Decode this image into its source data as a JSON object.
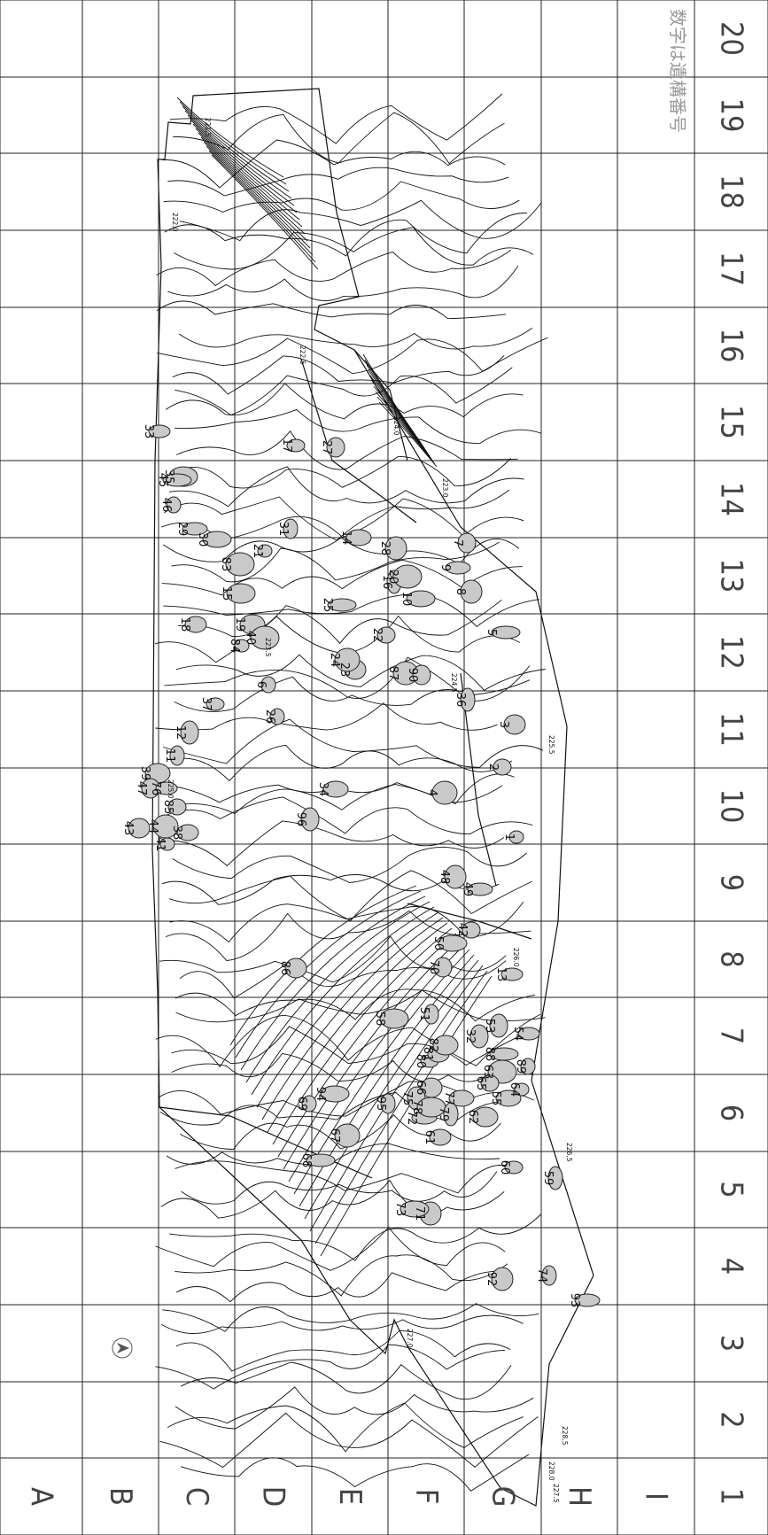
{
  "map": {
    "note": "数字は遺構番号",
    "row_labels": [
      "A",
      "B",
      "C",
      "D",
      "E",
      "F",
      "G",
      "H",
      "I"
    ],
    "col_labels": [
      "1",
      "2",
      "3",
      "4",
      "5",
      "6",
      "7",
      "8",
      "9",
      "10",
      "11",
      "12",
      "13",
      "14",
      "15",
      "16",
      "17",
      "18",
      "19",
      "20"
    ],
    "elevation_labels": [
      "221.5",
      "222.0",
      "222.5",
      "223.0",
      "223.5",
      "224.0",
      "224.5",
      "225.0",
      "225.5",
      "226.0",
      "226.5",
      "227.0",
      "227.5",
      "228.0",
      "228.5"
    ],
    "features": [
      {
        "id": "1"
      },
      {
        "id": "2"
      },
      {
        "id": "3"
      },
      {
        "id": "4"
      },
      {
        "id": "5"
      },
      {
        "id": "6"
      },
      {
        "id": "7"
      },
      {
        "id": "8"
      },
      {
        "id": "9"
      },
      {
        "id": "10"
      },
      {
        "id": "11"
      },
      {
        "id": "12"
      },
      {
        "id": "13"
      },
      {
        "id": "14"
      },
      {
        "id": "15"
      },
      {
        "id": "16"
      },
      {
        "id": "17"
      },
      {
        "id": "18"
      },
      {
        "id": "19"
      },
      {
        "id": "20"
      },
      {
        "id": "21"
      },
      {
        "id": "22"
      },
      {
        "id": "23"
      },
      {
        "id": "24"
      },
      {
        "id": "25"
      },
      {
        "id": "26"
      },
      {
        "id": "27"
      },
      {
        "id": "28"
      },
      {
        "id": "29"
      },
      {
        "id": "30"
      },
      {
        "id": "31"
      },
      {
        "id": "32"
      },
      {
        "id": "33"
      },
      {
        "id": "34"
      },
      {
        "id": "35"
      },
      {
        "id": "36"
      },
      {
        "id": "37"
      },
      {
        "id": "38"
      },
      {
        "id": "39"
      },
      {
        "id": "40"
      },
      {
        "id": "41"
      },
      {
        "id": "42"
      },
      {
        "id": "43"
      },
      {
        "id": "44"
      },
      {
        "id": "45"
      },
      {
        "id": "46"
      },
      {
        "id": "47"
      },
      {
        "id": "48"
      },
      {
        "id": "49"
      },
      {
        "id": "50"
      },
      {
        "id": "51"
      },
      {
        "id": "53"
      },
      {
        "id": "54"
      },
      {
        "id": "55"
      },
      {
        "id": "58"
      },
      {
        "id": "59"
      },
      {
        "id": "60"
      },
      {
        "id": "61"
      },
      {
        "id": "62"
      },
      {
        "id": "63"
      },
      {
        "id": "64"
      },
      {
        "id": "65"
      },
      {
        "id": "66"
      },
      {
        "id": "67"
      },
      {
        "id": "68"
      },
      {
        "id": "69"
      },
      {
        "id": "70"
      },
      {
        "id": "71"
      },
      {
        "id": "72"
      },
      {
        "id": "73"
      },
      {
        "id": "74"
      },
      {
        "id": "75"
      },
      {
        "id": "76"
      },
      {
        "id": "77"
      },
      {
        "id": "78"
      },
      {
        "id": "79"
      },
      {
        "id": "80"
      },
      {
        "id": "81"
      },
      {
        "id": "82"
      },
      {
        "id": "83"
      },
      {
        "id": "84"
      },
      {
        "id": "85"
      },
      {
        "id": "86"
      },
      {
        "id": "87"
      },
      {
        "id": "88"
      },
      {
        "id": "89"
      },
      {
        "id": "90"
      },
      {
        "id": "92"
      },
      {
        "id": "93"
      },
      {
        "id": "94"
      },
      {
        "id": "95"
      },
      {
        "id": "96"
      }
    ]
  }
}
